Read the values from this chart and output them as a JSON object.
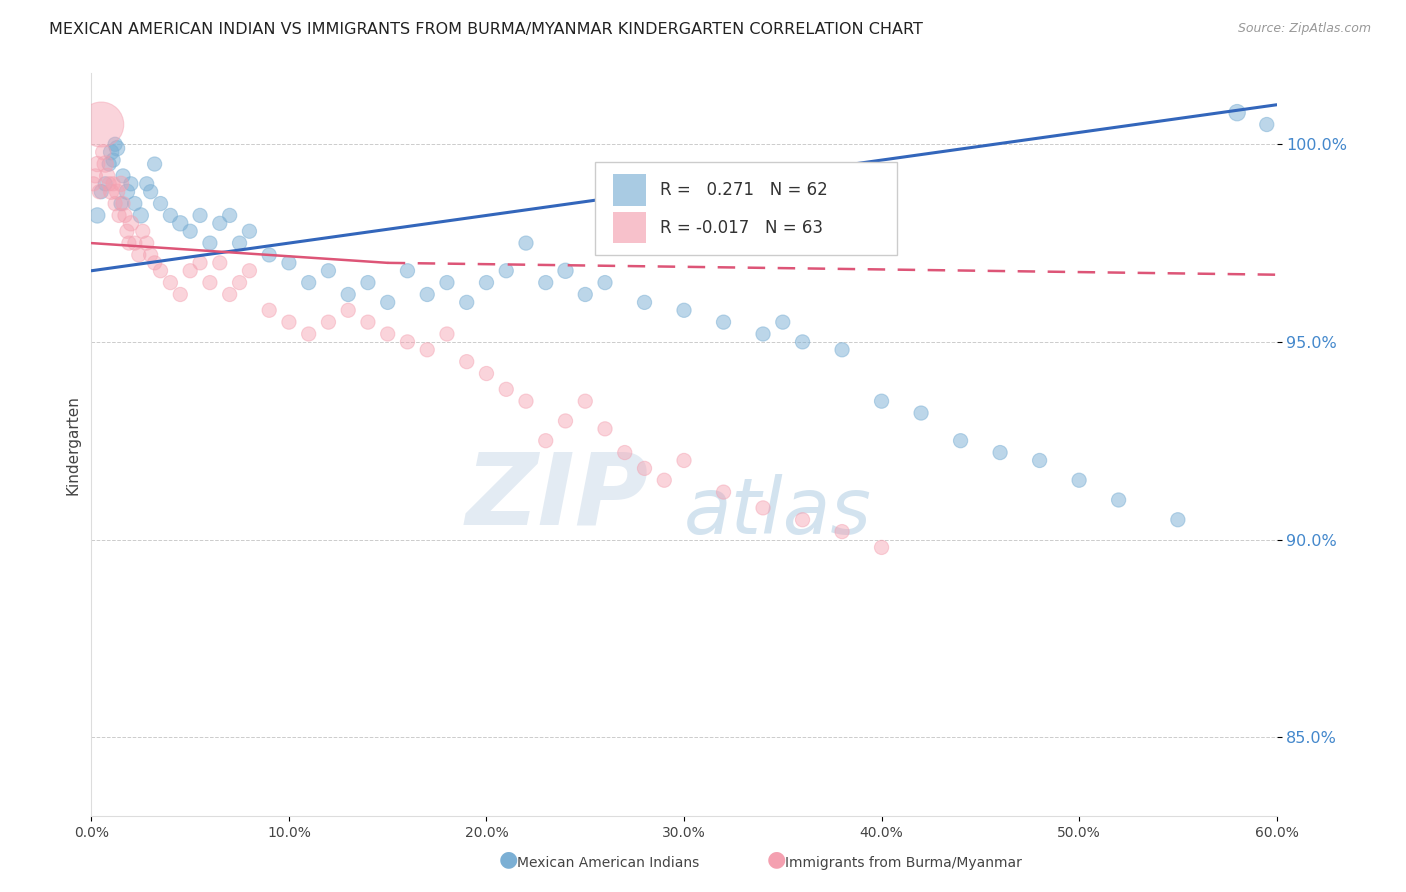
{
  "title": "MEXICAN AMERICAN INDIAN VS IMMIGRANTS FROM BURMA/MYANMAR KINDERGARTEN CORRELATION CHART",
  "source": "Source: ZipAtlas.com",
  "ylabel": "Kindergarten",
  "y_ticks": [
    85.0,
    90.0,
    95.0,
    100.0
  ],
  "y_tick_labels": [
    "85.0%",
    "90.0%",
    "95.0%",
    "100.0%"
  ],
  "xlim": [
    0.0,
    60.0
  ],
  "ylim": [
    83.0,
    101.8
  ],
  "legend_blue_r": "0.271",
  "legend_blue_n": "62",
  "legend_pink_r": "-0.017",
  "legend_pink_n": "63",
  "blue_color": "#7BAFD4",
  "pink_color": "#F4A0B0",
  "trend_blue_color": "#3366BB",
  "trend_pink_color": "#DD5577",
  "watermark_zip": "ZIP",
  "watermark_atlas": "atlas",
  "watermark_color_zip": "#C8D8E8",
  "watermark_color_atlas": "#A8C8E0",
  "blue_trend_x0": 0.0,
  "blue_trend_x1": 60.0,
  "blue_trend_y0": 96.8,
  "blue_trend_y1": 101.0,
  "pink_trend_x0": 0.0,
  "pink_trend_x1": 15.0,
  "pink_trend_y0": 97.5,
  "pink_trend_y1": 97.0,
  "pink_dash_x0": 15.0,
  "pink_dash_x1": 60.0,
  "pink_dash_y0": 97.0,
  "pink_dash_y1": 96.7,
  "blue_scatter_x": [
    0.3,
    0.5,
    0.7,
    0.9,
    1.0,
    1.1,
    1.2,
    1.3,
    1.5,
    1.6,
    1.8,
    2.0,
    2.2,
    2.5,
    2.8,
    3.0,
    3.2,
    3.5,
    4.0,
    4.5,
    5.0,
    5.5,
    6.0,
    6.5,
    7.0,
    7.5,
    8.0,
    9.0,
    10.0,
    11.0,
    12.0,
    13.0,
    14.0,
    15.0,
    16.0,
    17.0,
    18.0,
    19.0,
    20.0,
    21.0,
    22.0,
    23.0,
    24.0,
    25.0,
    26.0,
    28.0,
    30.0,
    32.0,
    34.0,
    35.0,
    36.0,
    38.0,
    40.0,
    42.0,
    44.0,
    46.0,
    48.0,
    50.0,
    52.0,
    55.0,
    58.0,
    59.5
  ],
  "blue_scatter_y": [
    98.2,
    98.8,
    99.0,
    99.5,
    99.8,
    99.6,
    100.0,
    99.9,
    98.5,
    99.2,
    98.8,
    99.0,
    98.5,
    98.2,
    99.0,
    98.8,
    99.5,
    98.5,
    98.2,
    98.0,
    97.8,
    98.2,
    97.5,
    98.0,
    98.2,
    97.5,
    97.8,
    97.2,
    97.0,
    96.5,
    96.8,
    96.2,
    96.5,
    96.0,
    96.8,
    96.2,
    96.5,
    96.0,
    96.5,
    96.8,
    97.5,
    96.5,
    96.8,
    96.2,
    96.5,
    96.0,
    95.8,
    95.5,
    95.2,
    95.5,
    95.0,
    94.8,
    93.5,
    93.2,
    92.5,
    92.2,
    92.0,
    91.5,
    91.0,
    90.5,
    100.8,
    100.5
  ],
  "blue_scatter_size": [
    35,
    30,
    30,
    30,
    35,
    30,
    30,
    35,
    30,
    30,
    35,
    30,
    30,
    35,
    30,
    30,
    30,
    30,
    30,
    35,
    30,
    30,
    30,
    30,
    30,
    30,
    30,
    30,
    30,
    30,
    30,
    30,
    30,
    30,
    30,
    30,
    30,
    30,
    30,
    30,
    30,
    30,
    35,
    30,
    30,
    30,
    30,
    30,
    30,
    30,
    30,
    30,
    30,
    30,
    30,
    30,
    30,
    30,
    30,
    30,
    40,
    30
  ],
  "pink_scatter_x": [
    0.1,
    0.2,
    0.3,
    0.4,
    0.5,
    0.6,
    0.7,
    0.8,
    0.9,
    1.0,
    1.1,
    1.2,
    1.3,
    1.4,
    1.5,
    1.6,
    1.7,
    1.8,
    1.9,
    2.0,
    2.2,
    2.4,
    2.6,
    2.8,
    3.0,
    3.2,
    3.5,
    4.0,
    4.5,
    5.0,
    5.5,
    6.0,
    6.5,
    7.0,
    7.5,
    8.0,
    9.0,
    10.0,
    11.0,
    12.0,
    13.0,
    14.0,
    15.0,
    16.0,
    17.0,
    18.0,
    19.0,
    20.0,
    21.0,
    22.0,
    23.0,
    24.0,
    25.0,
    26.0,
    27.0,
    28.0,
    29.0,
    30.0,
    32.0,
    34.0,
    36.0,
    38.0,
    40.0
  ],
  "pink_scatter_y": [
    99.0,
    99.2,
    99.5,
    98.8,
    100.5,
    99.8,
    99.5,
    99.2,
    99.0,
    98.8,
    99.0,
    98.5,
    98.8,
    98.2,
    99.0,
    98.5,
    98.2,
    97.8,
    97.5,
    98.0,
    97.5,
    97.2,
    97.8,
    97.5,
    97.2,
    97.0,
    96.8,
    96.5,
    96.2,
    96.8,
    97.0,
    96.5,
    97.0,
    96.2,
    96.5,
    96.8,
    95.8,
    95.5,
    95.2,
    95.5,
    95.8,
    95.5,
    95.2,
    95.0,
    94.8,
    95.2,
    94.5,
    94.2,
    93.8,
    93.5,
    92.5,
    93.0,
    93.5,
    92.8,
    92.2,
    91.8,
    91.5,
    92.0,
    91.2,
    90.8,
    90.5,
    90.2,
    89.8
  ],
  "pink_scatter_size": [
    30,
    30,
    35,
    30,
    300,
    35,
    40,
    35,
    30,
    35,
    30,
    30,
    35,
    30,
    35,
    30,
    30,
    30,
    30,
    35,
    30,
    30,
    30,
    30,
    30,
    30,
    30,
    30,
    30,
    30,
    30,
    30,
    30,
    30,
    30,
    30,
    30,
    30,
    30,
    30,
    30,
    30,
    30,
    30,
    30,
    30,
    30,
    30,
    30,
    30,
    30,
    30,
    30,
    30,
    30,
    30,
    30,
    30,
    30,
    30,
    30,
    30,
    30
  ]
}
